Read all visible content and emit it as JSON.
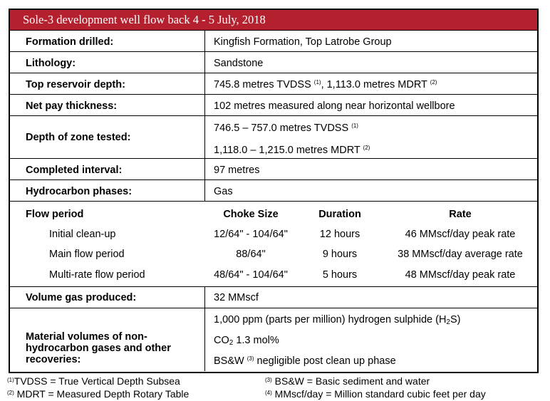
{
  "title": "Sole-3 development well flow back 4 - 5 July, 2018",
  "rows": {
    "formation": {
      "label": "Formation drilled:",
      "value": "Kingfish Formation, Top Latrobe Group"
    },
    "lithology": {
      "label": "Lithology:",
      "value": "Sandstone"
    },
    "top_reservoir": {
      "label": "Top reservoir depth:",
      "value_a": "745.8 metres TVDSS ",
      "sup_a": "(1)",
      "value_b": ", 1,113.0 metres MDRT ",
      "sup_b": "(2)"
    },
    "net_pay": {
      "label": "Net pay thickness:",
      "value": "102 metres measured along near horizontal wellbore"
    },
    "zone_tested": {
      "label": "Depth of zone tested:",
      "line1": "746.5 – 757.0 metres TVDSS ",
      "sup1": "(1)",
      "line2": "1,118.0 – 1,215.0 metres MDRT ",
      "sup2": "(2)"
    },
    "completed": {
      "label": "Completed interval:",
      "value": "97 metres"
    },
    "hydrocarbon": {
      "label": "Hydrocarbon phases:",
      "value": "Gas"
    },
    "volume_gas": {
      "label": "Volume gas produced:",
      "value": "32 MMscf"
    },
    "material": {
      "label_line1": "Material volumes of non-",
      "label_line2": "hydrocarbon gases and other",
      "label_line3": "recoveries:",
      "line1_a": "1,000 ppm (parts per million) hydrogen sulphide (H",
      "line1_sub": "2",
      "line1_b": "S)",
      "line2_a": "CO",
      "line2_sub": "2",
      "line2_b": " 1.3 mol%",
      "line3_a": "BS&W ",
      "line3_sup": "(3)",
      "line3_b": " negligible post clean up phase"
    }
  },
  "flow": {
    "headers": {
      "period": "Flow period",
      "choke": "Choke Size",
      "duration": "Duration",
      "rate": "Rate"
    },
    "rows": [
      {
        "period": "Initial clean-up",
        "choke": "12/64\" - 104/64\"",
        "duration": "12 hours",
        "rate": "46 MMscf/day peak rate"
      },
      {
        "period": "Main flow period",
        "choke": "88/64\"",
        "duration": "9 hours",
        "rate": "38 MMscf/day average rate"
      },
      {
        "period": "Multi-rate flow period",
        "choke": "48/64\" - 104/64\"",
        "duration": "5 hours",
        "rate": "48 MMscf/day peak rate"
      }
    ]
  },
  "footnotes": [
    {
      "mark": "(1)",
      "text": "TVDSS = True Vertical Depth Subsea"
    },
    {
      "mark": "(2)",
      "text": " MDRT = Measured Depth Rotary Table"
    },
    {
      "mark": "(3)",
      "text": " BS&W = Basic sediment and water"
    },
    {
      "mark": "(4)",
      "text": " MMscf/day = Million standard cubic feet per day"
    }
  ],
  "colors": {
    "title_bg": "#b5202e",
    "title_fg": "#ffffff"
  }
}
